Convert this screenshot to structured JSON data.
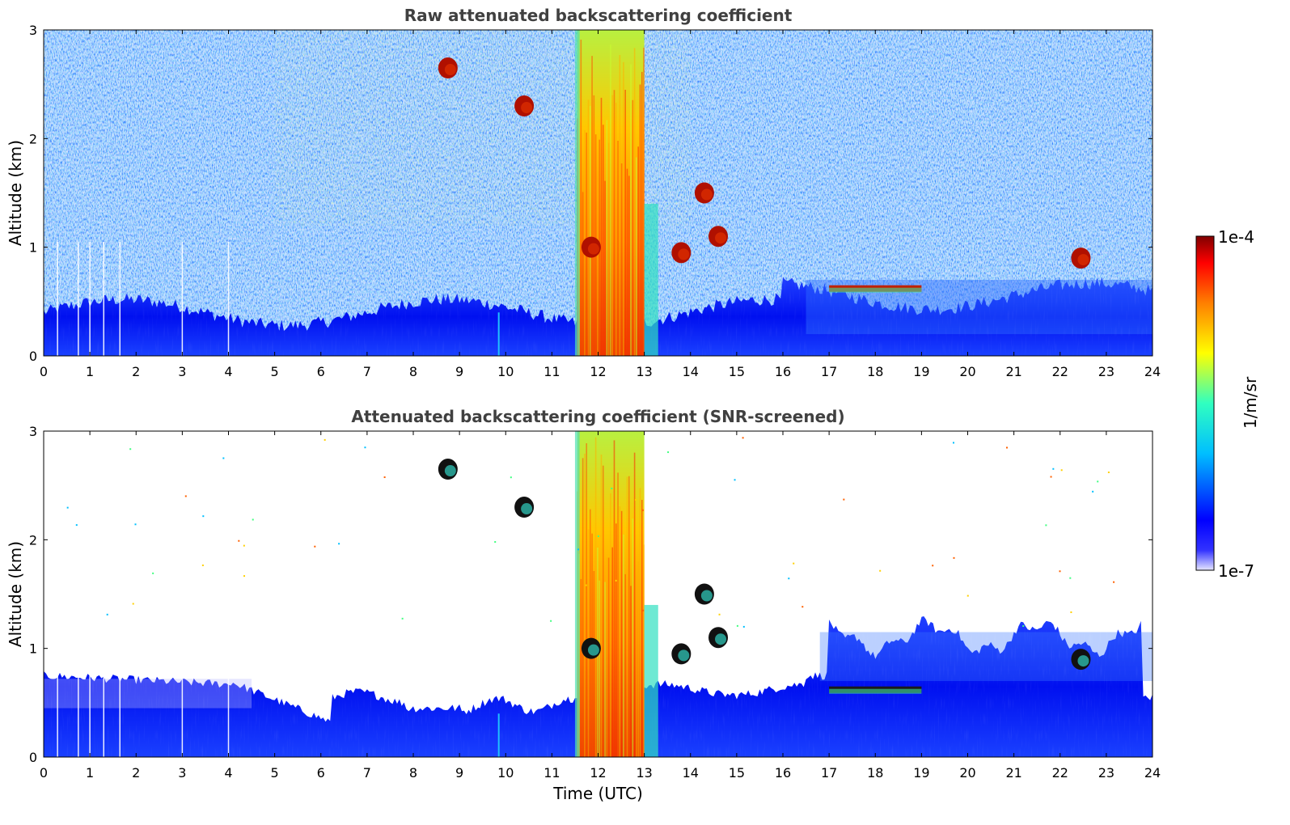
{
  "chart_data": [
    {
      "type": "heatmap",
      "title": "Raw attenuated backscattering coefficient",
      "xlabel": "",
      "ylabel": "Altitude (km)",
      "xlim": [
        0,
        24
      ],
      "ylim": [
        0,
        3
      ],
      "x_ticks": [
        "0",
        "1",
        "2",
        "3",
        "4",
        "5",
        "6",
        "7",
        "8",
        "9",
        "10",
        "11",
        "12",
        "13",
        "14",
        "15",
        "16",
        "17",
        "18",
        "19",
        "20",
        "21",
        "22",
        "23",
        "24"
      ],
      "y_ticks": [
        "0",
        "1",
        "2",
        "3"
      ],
      "grid": false,
      "screened": false,
      "features": [
        {
          "kind": "boundary_layer",
          "x0": 0,
          "x1": 24,
          "top_km": 0.5
        },
        {
          "kind": "dense_layer",
          "x0": 11.55,
          "x1": 13.0,
          "y0": 0,
          "y1": 3.0
        },
        {
          "kind": "cloud",
          "x": 8.75,
          "y": 2.65
        },
        {
          "kind": "cloud",
          "x": 10.4,
          "y": 2.3
        },
        {
          "kind": "cloud",
          "x": 11.85,
          "y": 1.0
        },
        {
          "kind": "cloud",
          "x": 14.3,
          "y": 1.5
        },
        {
          "kind": "cloud",
          "x": 14.6,
          "y": 1.1
        },
        {
          "kind": "cloud",
          "x": 13.8,
          "y": 0.95
        },
        {
          "kind": "cloud_layer",
          "x0": 17.0,
          "x1": 19.0,
          "y": 0.62
        },
        {
          "kind": "cloud",
          "x": 22.45,
          "y": 0.9
        }
      ]
    },
    {
      "type": "heatmap",
      "title": "Attenuated backscattering coefficient (SNR-screened)",
      "xlabel": "Time (UTC)",
      "ylabel": "Altitude (km)",
      "xlim": [
        0,
        24
      ],
      "ylim": [
        0,
        3
      ],
      "x_ticks": [
        "0",
        "1",
        "2",
        "3",
        "4",
        "5",
        "6",
        "7",
        "8",
        "9",
        "10",
        "11",
        "12",
        "13",
        "14",
        "15",
        "16",
        "17",
        "18",
        "19",
        "20",
        "21",
        "22",
        "23",
        "24"
      ],
      "y_ticks": [
        "0",
        "1",
        "2",
        "3"
      ],
      "grid": false,
      "screened": true,
      "features": [
        {
          "kind": "boundary_layer",
          "x0": 0,
          "x1": 24,
          "top_km": 0.55
        },
        {
          "kind": "dense_layer",
          "x0": 11.55,
          "x1": 13.0,
          "y0": 0,
          "y1": 3.0
        },
        {
          "kind": "cloud",
          "x": 8.75,
          "y": 2.65
        },
        {
          "kind": "cloud",
          "x": 10.4,
          "y": 2.3
        },
        {
          "kind": "cloud",
          "x": 11.85,
          "y": 1.0
        },
        {
          "kind": "cloud",
          "x": 14.3,
          "y": 1.5
        },
        {
          "kind": "cloud",
          "x": 14.6,
          "y": 1.1
        },
        {
          "kind": "cloud",
          "x": 13.8,
          "y": 0.95
        },
        {
          "kind": "cloud_layer",
          "x0": 17.0,
          "x1": 19.0,
          "y": 0.62
        },
        {
          "kind": "cloud",
          "x": 22.45,
          "y": 0.9
        }
      ]
    }
  ],
  "colorbar": {
    "label": "1/m/sr",
    "max_label": "1e-4",
    "min_label": "1e-7",
    "colormap": "jet",
    "scale": "log",
    "range": [
      1e-07,
      0.0001
    ],
    "colors": [
      "#e6e6ff",
      "#0000ff",
      "#00bfff",
      "#30ffc0",
      "#ffff00",
      "#ff7f00",
      "#ff0000",
      "#800000"
    ]
  }
}
